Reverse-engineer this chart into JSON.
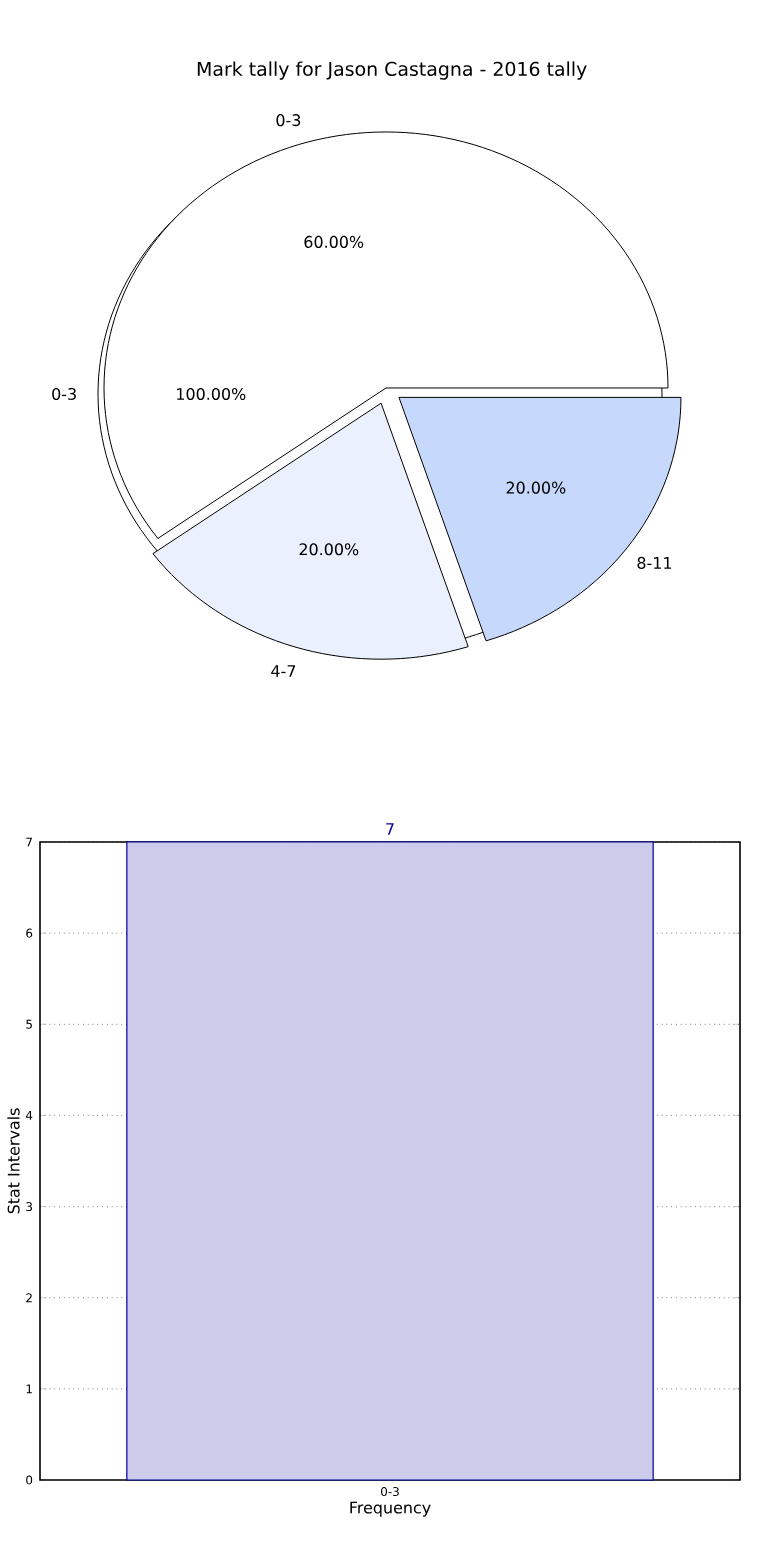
{
  "chart_data": [
    {
      "type": "pie",
      "title": "Mark tally for Jason Castagna - 2016 tally",
      "categories": [
        "0-3",
        "4-7",
        "8-11"
      ],
      "values": [
        60,
        20,
        20
      ],
      "colors": [
        "#ffffff",
        "#eaf0fd",
        "#c6d9fd"
      ],
      "value_labels": [
        "60.00%",
        "20.00%",
        "20.00%"
      ]
    },
    {
      "type": "pie",
      "categories": [
        "0-3"
      ],
      "values": [
        100
      ],
      "colors": [
        "#ffffff"
      ],
      "value_labels": [
        "100.00%"
      ]
    },
    {
      "type": "bar",
      "categories": [
        "0-3"
      ],
      "values": [
        7
      ],
      "color": "#ccccea",
      "data_labels": true,
      "xlabel": "Frequency",
      "ylabel": "Stat Intervals",
      "ylim": [
        0,
        7
      ],
      "yticks": [
        0,
        1,
        2,
        3,
        4,
        5,
        6,
        7
      ],
      "grid": true
    }
  ]
}
